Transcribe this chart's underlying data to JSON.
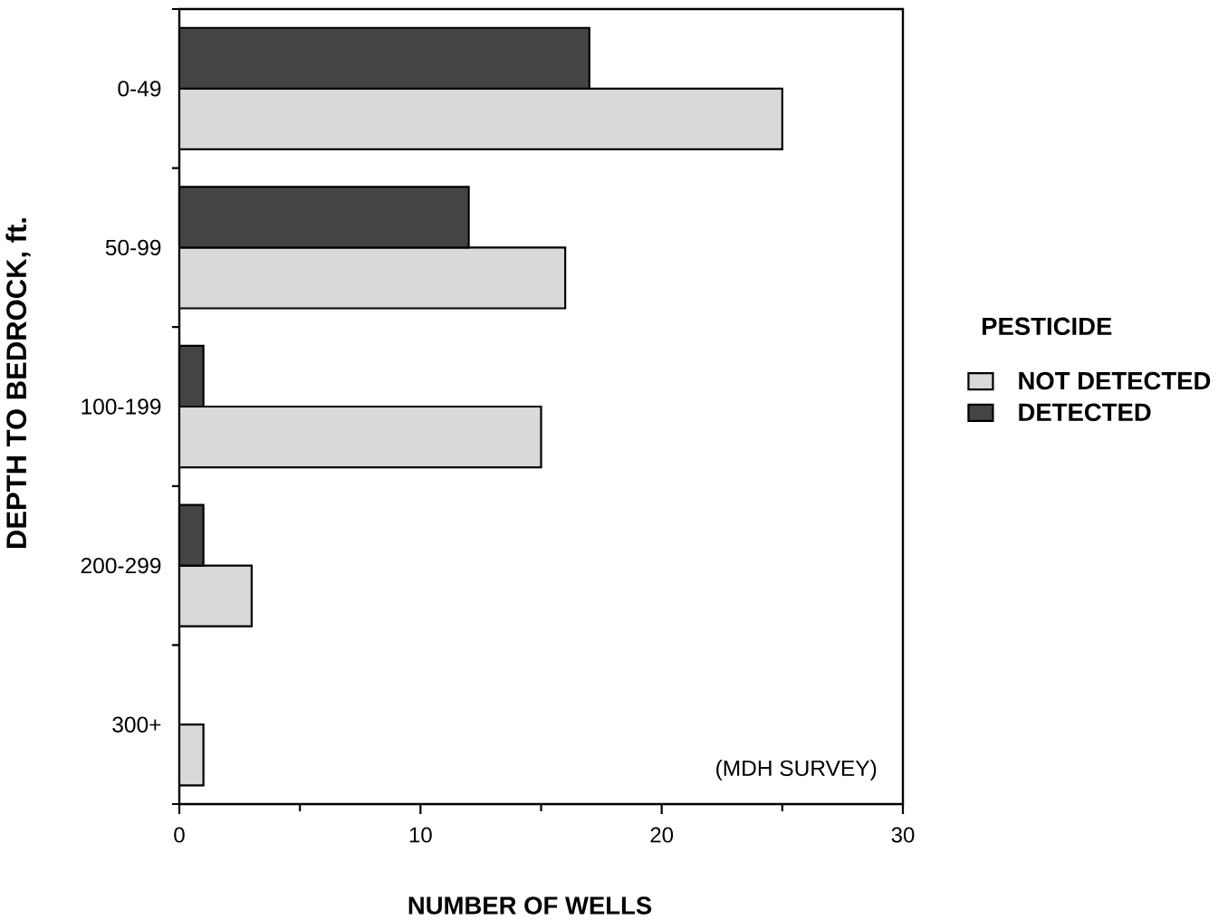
{
  "chart_data": {
    "type": "bar",
    "orientation": "horizontal",
    "xlabel": "NUMBER OF WELLS",
    "ylabel": "DEPTH TO BEDROCK, ft.",
    "legend_title": "PESTICIDE",
    "annotations": [
      "(MDH SURVEY)"
    ],
    "categories": [
      "0-49",
      "50-99",
      "100-199",
      "200-299",
      "300+"
    ],
    "series": [
      {
        "name": "NOT DETECTED",
        "color": "#d9d9d9",
        "values": [
          25,
          16,
          15,
          3,
          1
        ]
      },
      {
        "name": "DETECTED",
        "color": "#444444",
        "values": [
          17,
          12,
          1,
          1,
          0
        ]
      }
    ],
    "xlim": [
      0,
      30
    ],
    "xticks": [
      0,
      10,
      20,
      30
    ],
    "legend": "right"
  }
}
